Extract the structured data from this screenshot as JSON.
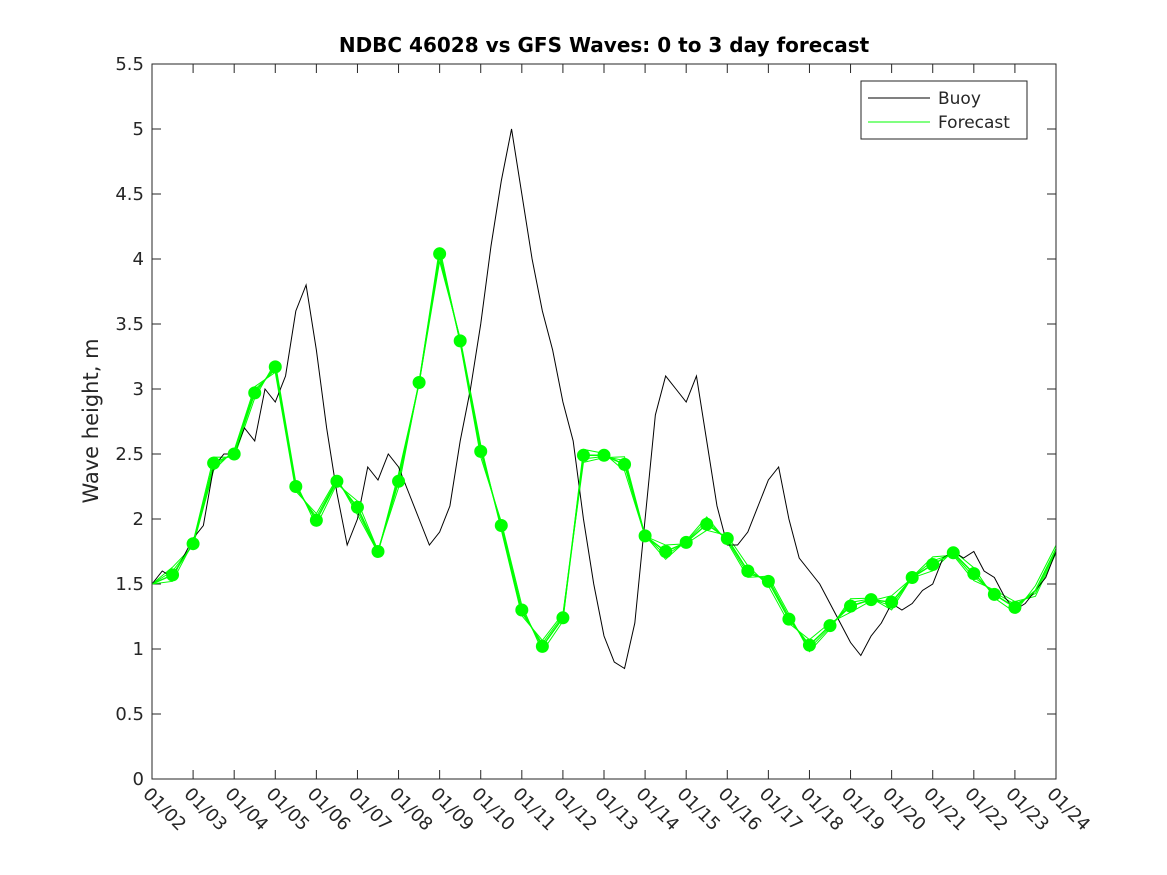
{
  "chart_data": {
    "type": "line",
    "title": "NDBC 46028 vs GFS Waves: 0 to 3 day forecast",
    "xlabel": "",
    "ylabel": "Wave height, m",
    "ylim": [
      0,
      5.5
    ],
    "xlim_days": [
      0,
      22
    ],
    "yticks": [
      "0",
      "0.5",
      "1",
      "1.5",
      "2",
      "2.5",
      "3",
      "3.5",
      "4",
      "4.5",
      "5",
      "5.5"
    ],
    "xticks": [
      "01/02",
      "01/03",
      "01/04",
      "01/05",
      "01/06",
      "01/07",
      "01/08",
      "01/09",
      "01/10",
      "01/11",
      "01/12",
      "01/13",
      "01/14",
      "01/15",
      "01/16",
      "01/17",
      "01/18",
      "01/19",
      "01/20",
      "01/21",
      "01/22",
      "01/23",
      "01/24"
    ],
    "legend": {
      "placement": "top-right",
      "entries": [
        "Buoy",
        "Forecast"
      ]
    },
    "colors": {
      "buoy": "#000000",
      "forecast": "#00ff00"
    },
    "series": [
      {
        "name": "Buoy",
        "x_step_days": 0.25,
        "values": [
          1.5,
          1.6,
          1.55,
          1.7,
          1.85,
          1.95,
          2.4,
          2.5,
          2.5,
          2.7,
          2.6,
          3.0,
          2.9,
          3.1,
          3.6,
          3.8,
          3.3,
          2.7,
          2.2,
          1.8,
          2.0,
          2.4,
          2.3,
          2.5,
          2.4,
          2.2,
          2.0,
          1.8,
          1.9,
          2.1,
          2.6,
          3.0,
          3.5,
          4.1,
          4.6,
          5.0,
          4.5,
          4.0,
          3.6,
          3.3,
          2.9,
          2.6,
          2.0,
          1.5,
          1.1,
          0.9,
          0.85,
          1.2,
          2.0,
          2.8,
          3.1,
          3.0,
          2.9,
          3.1,
          2.6,
          2.1,
          1.8,
          1.8,
          1.9,
          2.1,
          2.3,
          2.4,
          2.0,
          1.7,
          1.6,
          1.5,
          1.35,
          1.2,
          1.05,
          0.95,
          1.1,
          1.2,
          1.35,
          1.3,
          1.35,
          1.45,
          1.5,
          1.7,
          1.75,
          1.7,
          1.75,
          1.6,
          1.55,
          1.4,
          1.3,
          1.35,
          1.45,
          1.55,
          1.75
        ]
      },
      {
        "name": "Forecast",
        "x_days": [
          0,
          0.5,
          1,
          1.5,
          2,
          2.5,
          3,
          3.5,
          4,
          4.5,
          5,
          5.5,
          6,
          6.5,
          7,
          7.5,
          8,
          8.5,
          9,
          9.5,
          10,
          10.5,
          11,
          11.5,
          12,
          12.5,
          13,
          13.5,
          14,
          14.5,
          15,
          15.5,
          16,
          16.5,
          17,
          17.5,
          18,
          18.5,
          19,
          19.5,
          20,
          20.5,
          21,
          21.5,
          22
        ],
        "values": [
          1.5,
          1.57,
          1.81,
          2.43,
          2.5,
          2.97,
          3.17,
          2.25,
          1.99,
          2.29,
          2.09,
          1.75,
          2.29,
          3.05,
          4.04,
          3.37,
          2.52,
          1.95,
          1.3,
          1.02,
          1.24,
          2.49,
          2.49,
          2.42,
          1.87,
          1.75,
          1.82,
          1.96,
          1.85,
          1.6,
          1.52,
          1.23,
          1.03,
          1.18,
          1.33,
          1.38,
          1.36,
          1.55,
          1.65,
          1.74,
          1.58,
          1.42,
          1.32,
          1.45,
          1.77
        ]
      }
    ],
    "markers": {
      "name": "Forecast points",
      "x_days": [
        0.5,
        1,
        1.5,
        2,
        2.5,
        3,
        3.5,
        4,
        4.5,
        5,
        5.5,
        6,
        6.5,
        7,
        7.5,
        8,
        8.5,
        9,
        9.5,
        10,
        10.5,
        11,
        11.5,
        12,
        12.5,
        13,
        13.5,
        14,
        14.5,
        15,
        15.5,
        16,
        16.5,
        17,
        17.5,
        18,
        18.5,
        19,
        19.5,
        20,
        20.5,
        21
      ],
      "values": [
        1.57,
        1.81,
        2.43,
        2.5,
        2.97,
        3.17,
        2.25,
        1.99,
        2.29,
        2.09,
        1.75,
        2.29,
        3.05,
        4.04,
        3.37,
        2.52,
        1.95,
        1.3,
        1.02,
        1.24,
        2.49,
        2.49,
        2.42,
        1.87,
        1.75,
        1.82,
        1.96,
        1.85,
        1.6,
        1.52,
        1.23,
        1.03,
        1.18,
        1.33,
        1.38,
        1.36,
        1.55,
        1.65,
        1.74,
        1.58,
        1.42,
        1.32
      ]
    }
  }
}
